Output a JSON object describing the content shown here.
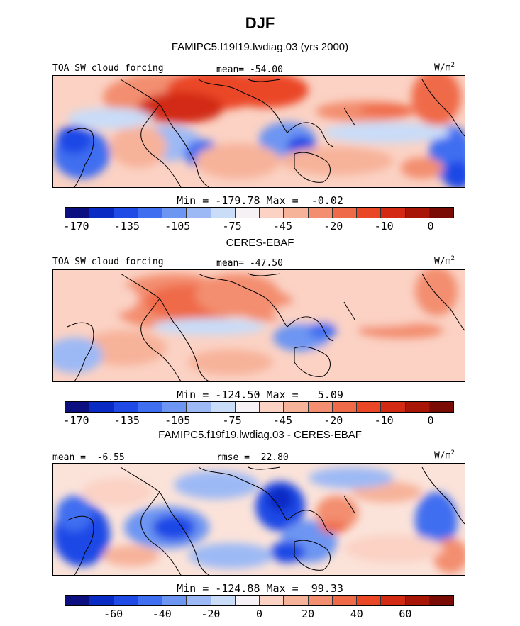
{
  "main_title": "DJF",
  "panels": [
    {
      "title": "FAMIPC5.f19f19.lwdiag.03 (yrs 2000)",
      "left_label": "TOA SW cloud forcing",
      "mid_label": "mean= -54.00",
      "units": "W/m",
      "units_sup": "2",
      "minmax": "Min = -179.78 Max =  -0.02",
      "ticks": [
        "-170",
        "-135",
        "-105",
        "-75",
        "-45",
        "-20",
        "-10",
        "0"
      ],
      "tick_levels": [
        -170,
        -135,
        -105,
        -75,
        -45,
        -20,
        -10,
        0
      ],
      "field": "model"
    },
    {
      "title": "CERES-EBAF",
      "left_label": "TOA SW cloud forcing",
      "mid_label": "mean= -47.50",
      "units": "W/m",
      "units_sup": "2",
      "minmax": "Min = -124.50 Max =   5.09",
      "ticks": [
        "-170",
        "-135",
        "-105",
        "-75",
        "-45",
        "-20",
        "-10",
        "0"
      ],
      "tick_levels": [
        -170,
        -135,
        -105,
        -75,
        -45,
        -20,
        -10,
        0
      ],
      "field": "obs"
    },
    {
      "title": "FAMIPC5.f19f19.lwdiag.03 - CERES-EBAF",
      "left_label": "mean =  -6.55",
      "mid_label": "rmse =  22.80",
      "units": "W/m",
      "units_sup": "2",
      "minmax": "Min = -124.88 Max =  99.33",
      "ticks": [
        "-60",
        "-40",
        "-20",
        "0",
        "20",
        "40",
        "60"
      ],
      "tick_levels": [
        -60,
        -40,
        -20,
        0,
        20,
        40,
        60
      ],
      "field": "diff"
    }
  ],
  "chart_data": {
    "type": "heatmap",
    "colorbar_colors": [
      "#0b0f80",
      "#0a2ac4",
      "#1f4ae6",
      "#3f6ef0",
      "#6d95f2",
      "#9db9f5",
      "#c9dcf8",
      "#f5f1f4",
      "#fbd2c4",
      "#f7b29a",
      "#f38e70",
      "#ef6a48",
      "#ea4726",
      "#d22a13",
      "#a81608",
      "#7a0a04"
    ]
  }
}
